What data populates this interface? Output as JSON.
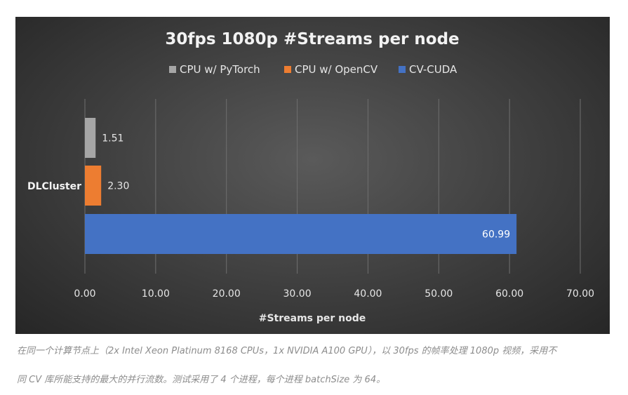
{
  "chart_data": {
    "type": "bar",
    "orientation": "horizontal",
    "title": "30fps 1080p #Streams per node",
    "xlabel": "#Streams per node",
    "ylabel": "",
    "categories": [
      "DLCluster"
    ],
    "series": [
      {
        "name": "CPU w/ PyTorch",
        "values": [
          1.51
        ],
        "labels": [
          "1.51"
        ],
        "color": "#a6a6a6"
      },
      {
        "name": "CPU w/ OpenCV",
        "values": [
          2.3
        ],
        "labels": [
          "2.30"
        ],
        "color": "#ed7d31"
      },
      {
        "name": "CV-CUDA",
        "values": [
          60.99
        ],
        "labels": [
          "60.99"
        ],
        "color": "#4472c4"
      }
    ],
    "xlim": [
      0,
      70
    ],
    "xticks": [
      0,
      10,
      20,
      30,
      40,
      50,
      60,
      70
    ],
    "xtick_labels": [
      "0.00",
      "10.00",
      "20.00",
      "30.00",
      "40.00",
      "50.00",
      "60.00",
      "70.00"
    ],
    "grid": true,
    "legend_position": "top"
  },
  "caption": {
    "line1": "在同一个计算节点上（2x Intel Xeon Platinum 8168 CPUs，1x NVIDIA A100 GPU），以 30fps 的帧率处理 1080p 视频，采用不",
    "line2": "同 CV 库所能支持的最大的并行流数。测试采用了 4 个进程，每个进程 batchSize 为 64。"
  }
}
